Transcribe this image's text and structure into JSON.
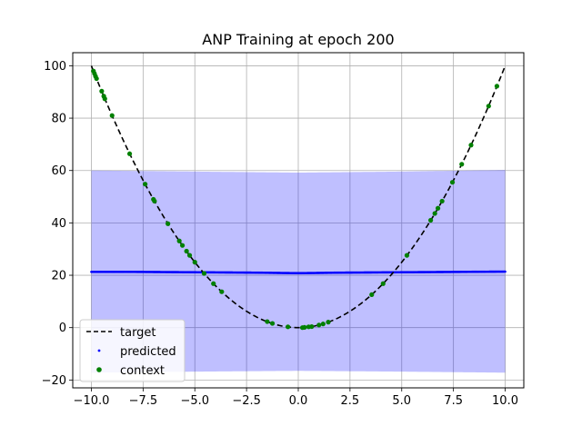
{
  "chart_data": {
    "type": "line",
    "title": "ANP Training at epoch 200",
    "xlabel": "",
    "ylabel": "",
    "xlim": [
      -10.9,
      10.9
    ],
    "ylim": [
      -23,
      105
    ],
    "grid": true,
    "legend_position": "lower-left",
    "x_ticks": [
      -10.0,
      -7.5,
      -5.0,
      -2.5,
      0.0,
      2.5,
      5.0,
      7.5,
      10.0
    ],
    "x_tick_labels": [
      "−10.0",
      "−7.5",
      "−5.0",
      "−2.5",
      "0.0",
      "2.5",
      "5.0",
      "7.5",
      "10.0"
    ],
    "y_ticks": [
      -20,
      0,
      20,
      40,
      60,
      80,
      100
    ],
    "y_tick_labels": [
      "−20",
      "0",
      "20",
      "40",
      "60",
      "80",
      "100"
    ],
    "series": [
      {
        "name": "target",
        "style": "dashed-line",
        "color": "#000000",
        "function": "y = x^2",
        "x_range": [
          -10,
          10
        ]
      },
      {
        "name": "predicted",
        "style": "points",
        "color": "#0000ff",
        "x_range": [
          -10,
          10
        ],
        "points": [
          [
            -10,
            21.3
          ],
          [
            -8,
            21.3
          ],
          [
            -6,
            21.2
          ],
          [
            -4,
            21.1
          ],
          [
            -2,
            21.0
          ],
          [
            -1,
            20.9
          ],
          [
            0,
            20.8
          ],
          [
            1,
            20.9
          ],
          [
            2,
            21.0
          ],
          [
            4,
            21.1
          ],
          [
            6,
            21.2
          ],
          [
            8,
            21.3
          ],
          [
            10,
            21.4
          ]
        ]
      },
      {
        "name": "confidence band",
        "style": "fill",
        "color": "#0000ff",
        "opacity": 0.25,
        "x_range": [
          -10,
          10
        ],
        "upper": [
          [
            -10,
            60.0
          ],
          [
            -5,
            59.6
          ],
          [
            0,
            59.2
          ],
          [
            5,
            59.6
          ],
          [
            10,
            60.2
          ]
        ],
        "lower": [
          [
            -10,
            -17.2
          ],
          [
            -5,
            -16.8
          ],
          [
            0,
            -16.5
          ],
          [
            5,
            -16.8
          ],
          [
            10,
            -17.2
          ]
        ]
      },
      {
        "name": "context",
        "style": "points",
        "color": "#008000",
        "x": [
          -9.9,
          -9.85,
          -9.8,
          -9.75,
          -9.5,
          -9.4,
          -9.35,
          -9.0,
          -8.15,
          -7.4,
          -7.0,
          -6.95,
          -6.3,
          -5.75,
          -5.6,
          -5.4,
          -5.25,
          -5.0,
          -4.55,
          -4.1,
          -3.7,
          -1.5,
          -1.25,
          -0.5,
          0.2,
          0.3,
          0.5,
          0.65,
          1.0,
          1.2,
          1.45,
          3.55,
          4.1,
          5.25,
          6.4,
          6.6,
          6.75,
          6.95,
          7.45,
          7.9,
          8.35,
          9.2,
          9.6
        ],
        "y": [
          98.0,
          97.0,
          96.0,
          95.1,
          90.3,
          88.4,
          87.4,
          81.0,
          66.4,
          54.8,
          49.0,
          48.3,
          39.7,
          33.1,
          31.4,
          29.2,
          27.6,
          25.0,
          20.7,
          16.8,
          13.7,
          2.3,
          1.6,
          0.3,
          0.0,
          0.1,
          0.3,
          0.4,
          1.0,
          1.4,
          2.1,
          12.6,
          16.8,
          27.6,
          41.0,
          43.6,
          45.6,
          48.3,
          55.5,
          62.4,
          69.7,
          84.6,
          92.2
        ]
      }
    ]
  }
}
